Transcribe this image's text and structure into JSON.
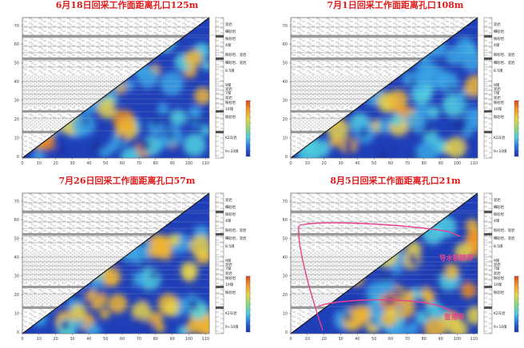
{
  "panels": [
    {
      "title": "6月18日回采工作面距离孔口125m",
      "level": 0.28
    },
    {
      "title": "7月1日回采工作面距离孔口108m",
      "level": 0.4
    },
    {
      "title": "7月26日回采工作面距离孔口57m",
      "level": 0.62
    },
    {
      "title": "8月5日回采工作面距离孔口21m",
      "level": 0.82
    }
  ],
  "axes": {
    "x_ticks": [
      "0",
      "10",
      "20",
      "30",
      "40",
      "50",
      "60",
      "70",
      "80",
      "90",
      "100",
      "110"
    ],
    "y_ticks": [
      "0",
      "10",
      "20",
      "30",
      "40",
      "50",
      "60",
      "70"
    ]
  },
  "strata_labels": [
    "泥岩",
    "细砂岩",
    "粉砂岩",
    "4煤",
    "粉砂岩、泥岩",
    "细砂岩、泥岩",
    "8.5煤",
    "9煤",
    "泥岩",
    "7煤",
    "泥岩",
    "粉砂岩",
    "10煤",
    "粉砂岩",
    "K2灰岩",
    "9+10煤"
  ],
  "annotations": {
    "fracture_zone": "导水裂隙带",
    "caving_zone": "冒落带"
  },
  "colors": {
    "title": "#e01919",
    "annotation": "#e8418f",
    "colorbar": [
      "#1c2fae",
      "#2a6fe0",
      "#4fc7e8",
      "#8ad87a",
      "#e8d24a",
      "#f39a2a",
      "#d9461e"
    ]
  }
}
